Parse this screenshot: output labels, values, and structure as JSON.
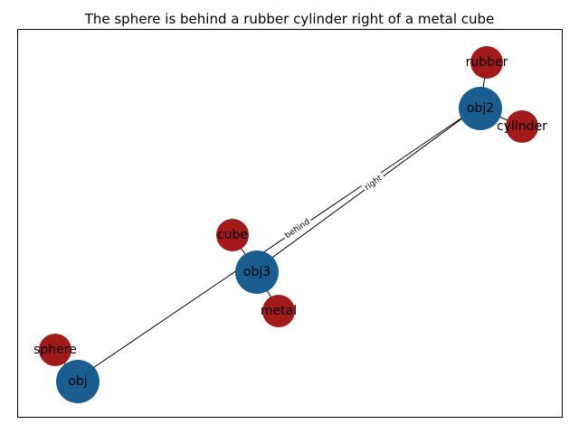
{
  "title": "The sphere is behind a rubber cylinder right of a metal cube",
  "colors": {
    "object_node": "#1a5e91",
    "attribute_node": "#a21a1a",
    "edge": "#000000",
    "frame": "#000000"
  },
  "nodes": [
    {
      "id": "obj",
      "label": "obj",
      "kind": "object"
    },
    {
      "id": "obj2",
      "label": "obj2",
      "kind": "object"
    },
    {
      "id": "obj3",
      "label": "obj3",
      "kind": "object"
    },
    {
      "id": "sphere",
      "label": "sphere",
      "kind": "attribute"
    },
    {
      "id": "rubber",
      "label": "rubber",
      "kind": "attribute"
    },
    {
      "id": "cylinder",
      "label": "cylinder",
      "kind": "attribute"
    },
    {
      "id": "cube",
      "label": "cube",
      "kind": "attribute"
    },
    {
      "id": "metal",
      "label": "metal",
      "kind": "attribute"
    }
  ],
  "edges": [
    {
      "from": "obj",
      "to": "obj2",
      "label": "behind"
    },
    {
      "from": "obj2",
      "to": "obj3",
      "label": "right"
    },
    {
      "from": "obj",
      "to": "sphere",
      "label": ""
    },
    {
      "from": "obj2",
      "to": "rubber",
      "label": ""
    },
    {
      "from": "obj2",
      "to": "cylinder",
      "label": ""
    },
    {
      "from": "obj3",
      "to": "cube",
      "label": ""
    },
    {
      "from": "obj3",
      "to": "metal",
      "label": ""
    }
  ]
}
